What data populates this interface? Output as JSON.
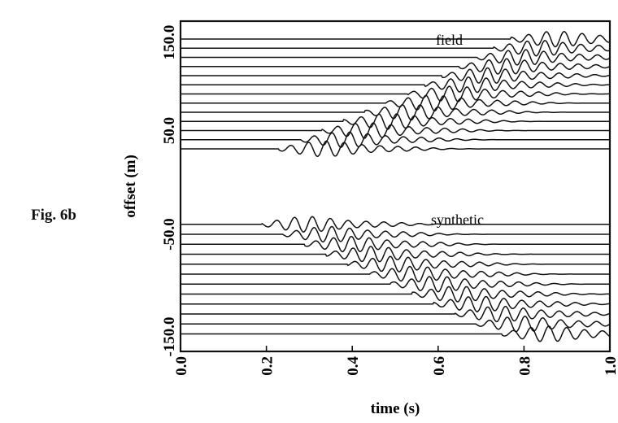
{
  "figure_label": "Fig. 6b",
  "chart_data": {
    "type": "seismogram-wiggle",
    "xlabel": "time (s)",
    "ylabel": "offset (m)",
    "xlim": [
      0.0,
      1.0
    ],
    "x_ticks": [
      {
        "value": 0.0,
        "label": "0.0"
      },
      {
        "value": 0.2,
        "label": "0.2"
      },
      {
        "value": 0.4,
        "label": "0.4"
      },
      {
        "value": 0.6,
        "label": "0.6"
      },
      {
        "value": 0.8,
        "label": "0.8"
      },
      {
        "value": 1.0,
        "label": "1.0"
      }
    ],
    "y_ticks": [
      {
        "value": 150,
        "label": "150.0"
      },
      {
        "value": 50,
        "label": "50.0"
      },
      {
        "value": -50,
        "label": "-50.0"
      },
      {
        "value": -150,
        "label": "-150.0"
      }
    ],
    "panels": [
      {
        "label": "field",
        "offsets": [
          150,
          140,
          130,
          120,
          110,
          100,
          90,
          80,
          70,
          60,
          50,
          40,
          30
        ],
        "arrival_times_s": [
          0.8,
          0.76,
          0.72,
          0.68,
          0.64,
          0.6,
          0.56,
          0.51,
          0.46,
          0.41,
          0.36,
          0.31,
          0.26
        ]
      },
      {
        "label": "synthetic",
        "offsets": [
          -40,
          -50,
          -60,
          -70,
          -80,
          -90,
          -100,
          -110,
          -120,
          -130,
          -140,
          -150
        ],
        "arrival_times_s": [
          0.22,
          0.27,
          0.32,
          0.37,
          0.42,
          0.47,
          0.52,
          0.57,
          0.62,
          0.67,
          0.72,
          0.78
        ]
      }
    ]
  }
}
